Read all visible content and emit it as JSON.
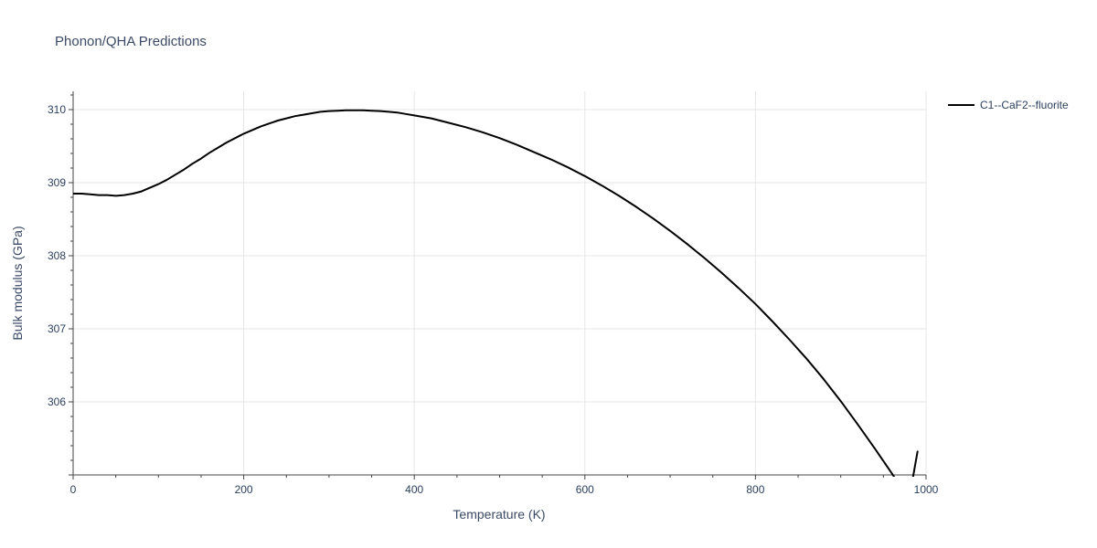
{
  "chart_data": {
    "type": "line",
    "title": "Phonon/QHA Predictions",
    "xlabel": "Temperature (K)",
    "ylabel": "Bulk modulus (GPa)",
    "xlim": [
      0,
      1000
    ],
    "ylim": [
      305.0,
      310.25
    ],
    "xticks": [
      0,
      200,
      400,
      600,
      800,
      1000
    ],
    "xtick_labels": [
      "0",
      "200",
      "400",
      "600",
      "800",
      "1000"
    ],
    "yticks": [
      306,
      307,
      308,
      309,
      310
    ],
    "ytick_labels": [
      "306",
      "307",
      "308",
      "309",
      "310"
    ],
    "grid": true,
    "legend_position": "top-right",
    "series": [
      {
        "name": "C1--CaF2--fluorite",
        "color": "#000000",
        "x": [
          0,
          10,
          20,
          30,
          40,
          50,
          60,
          70,
          80,
          90,
          100,
          110,
          120,
          130,
          140,
          150,
          160,
          170,
          180,
          190,
          200,
          210,
          220,
          230,
          240,
          250,
          260,
          270,
          280,
          290,
          300,
          310,
          320,
          330,
          340,
          350,
          360,
          370,
          380,
          390,
          400,
          420,
          440,
          460,
          480,
          500,
          520,
          540,
          560,
          580,
          600,
          620,
          640,
          660,
          680,
          700,
          720,
          740,
          760,
          780,
          800,
          820,
          840,
          860,
          880,
          900,
          920,
          940,
          960,
          980,
          990
        ],
        "y": [
          308.85,
          308.85,
          308.84,
          308.83,
          308.83,
          308.82,
          308.83,
          308.85,
          308.88,
          308.93,
          308.98,
          309.04,
          309.11,
          309.18,
          309.26,
          309.33,
          309.41,
          309.48,
          309.55,
          309.61,
          309.67,
          309.72,
          309.77,
          309.81,
          309.85,
          309.88,
          309.91,
          309.93,
          309.95,
          309.97,
          309.98,
          309.985,
          309.99,
          309.99,
          309.99,
          309.985,
          309.98,
          309.97,
          309.96,
          309.94,
          309.92,
          309.88,
          309.82,
          309.76,
          309.69,
          309.61,
          309.52,
          309.42,
          309.32,
          309.21,
          309.09,
          308.96,
          308.82,
          308.67,
          308.51,
          308.34,
          308.16,
          307.97,
          307.77,
          307.56,
          307.34,
          307.1,
          306.85,
          306.59,
          306.31,
          306.01,
          305.69,
          305.36,
          305.02,
          304.66,
          305.32
        ]
      }
    ]
  }
}
